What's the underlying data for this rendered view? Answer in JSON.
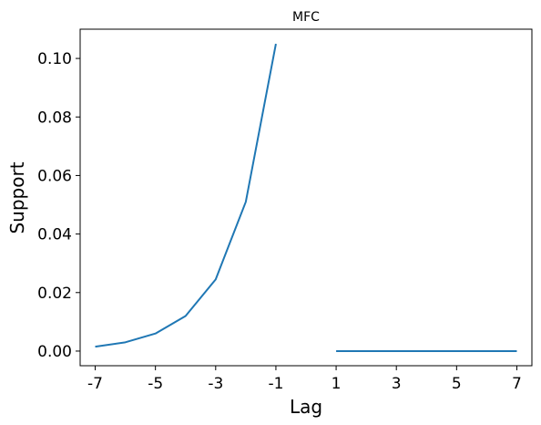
{
  "chart_data": {
    "type": "line",
    "title": "MFC",
    "xlabel": "Lag",
    "ylabel": "Support",
    "xlim": [
      -7.5,
      7.5
    ],
    "ylim": [
      -0.005,
      0.11
    ],
    "x_ticks": [
      -7,
      -5,
      -3,
      -1,
      1,
      3,
      5,
      7
    ],
    "x_tick_labels": [
      "-7",
      "-5",
      "-3",
      "-1",
      "1",
      "3",
      "5",
      "7"
    ],
    "y_ticks": [
      0.0,
      0.02,
      0.04,
      0.06,
      0.08,
      0.1
    ],
    "y_tick_labels": [
      "0.00",
      "0.02",
      "0.04",
      "0.06",
      "0.08",
      "0.10"
    ],
    "grid": false,
    "series": [
      {
        "color": "#1f77b4",
        "segments": [
          {
            "x": [
              -7,
              -6,
              -5,
              -4,
              -3,
              -2,
              -1
            ],
            "y": [
              0.0015,
              0.003,
              0.006,
              0.012,
              0.0245,
              0.051,
              0.105
            ]
          },
          {
            "x": [
              1,
              2,
              3,
              4,
              5,
              6,
              7
            ],
            "y": [
              0,
              0,
              0,
              0,
              0,
              0,
              0
            ]
          }
        ]
      }
    ]
  }
}
